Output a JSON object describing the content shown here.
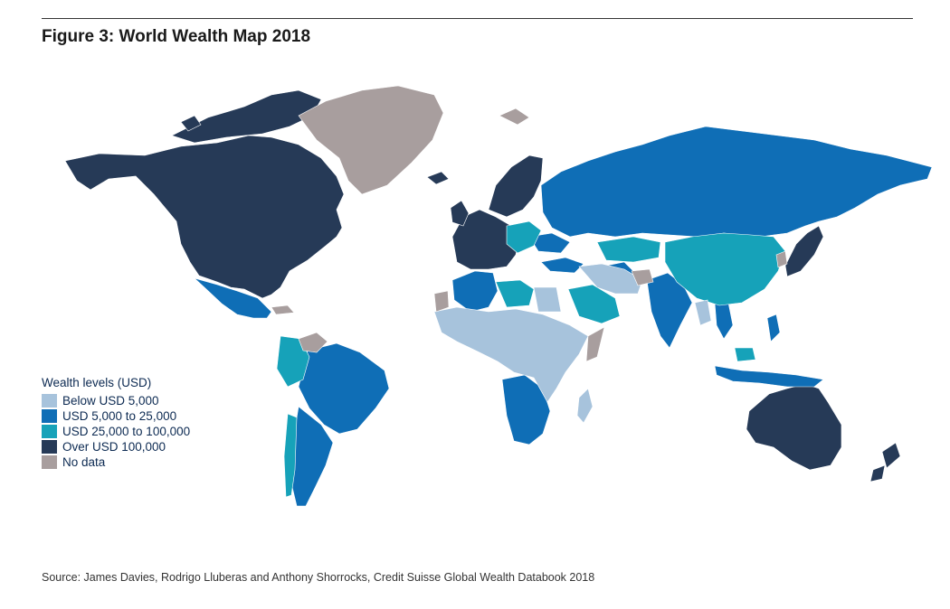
{
  "figure": {
    "title": "Figure 3: World Wealth Map 2018",
    "source": "Source: James Davies, Rodrigo Lluberas and Anthony Shorrocks, Credit Suisse Global Wealth Databook 2018"
  },
  "legend": {
    "title": "Wealth levels (USD)",
    "items": [
      {
        "label": "Below USD 5,000",
        "color": "#a7c3dc"
      },
      {
        "label": "USD 5,000 to 25,000",
        "color": "#0f6eb6"
      },
      {
        "label": "USD 25,000 to 100,000",
        "color": "#16a2b9"
      },
      {
        "label": "Over USD 100,000",
        "color": "#263a57"
      },
      {
        "label": "No data",
        "color": "#a89e9e"
      }
    ]
  },
  "colors": {
    "below_5000": "#a7c3dc",
    "5000_to_25000": "#0f6eb6",
    "25000_to_100000": "#16a2b9",
    "over_100000": "#263a57",
    "no_data": "#a89e9e"
  }
}
